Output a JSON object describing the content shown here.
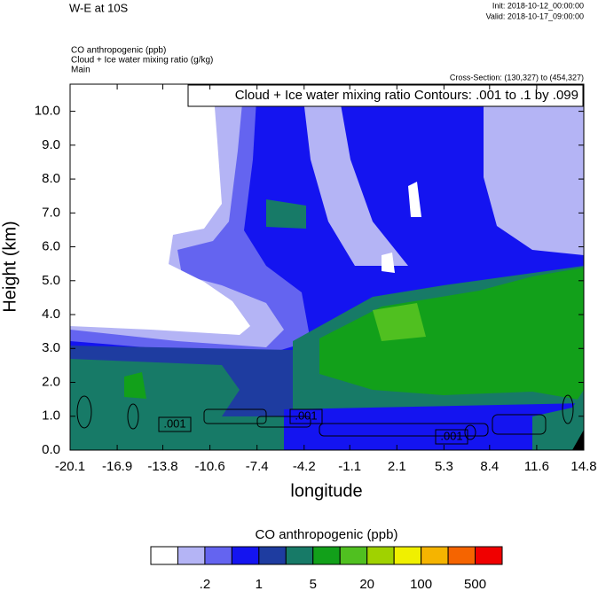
{
  "chart_data": {
    "type": "contour",
    "title": "W-E at 10S",
    "init": "Init: 2018-10-12_00:00:00",
    "valid": "Valid: 2018-10-17_09:00:00",
    "field_labels": [
      "CO anthropogenic   (ppb)",
      "Cloud + Ice water mixing ratio   (g/kg)",
      "Main"
    ],
    "cross_section": "Cross-Section: (130,327) to (454,327)",
    "contour_info": "Cloud + Ice water mixing ratio Contours: .001 to .1 by .099",
    "xlabel": "longitude",
    "ylabel": "Height (km)",
    "xlim": [
      -20.1,
      14.8
    ],
    "ylim": [
      0,
      10.8
    ],
    "xticks": [
      -20.1,
      -16.9,
      -13.8,
      -10.6,
      -7.4,
      -4.2,
      -1.1,
      2.1,
      5.3,
      8.4,
      11.6,
      14.8
    ],
    "yticks": [
      {
        "value": 0,
        "label": "0.0"
      },
      {
        "value": 1,
        "label": "1.0"
      },
      {
        "value": 2,
        "label": "2.0"
      },
      {
        "value": 3,
        "label": "3.0"
      },
      {
        "value": 4,
        "label": "4.0"
      },
      {
        "value": 5,
        "label": "5.0"
      },
      {
        "value": 6,
        "label": "6.0"
      },
      {
        "value": 7,
        "label": "7.0"
      },
      {
        "value": 8,
        "label": "8.0"
      },
      {
        "value": 9,
        "label": "9.0"
      },
      {
        "value": 10,
        "label": "10.0"
      }
    ],
    "contour_labels": [
      ".001",
      ".001",
      ".001"
    ],
    "colorbar": {
      "title": "CO anthropogenic  (ppb)",
      "colors": [
        "#ffffff",
        "#b4b4f5",
        "#6464f0",
        "#1414f0",
        "#1e3ca0",
        "#177a67",
        "#12a01a",
        "#50c020",
        "#a0d200",
        "#f0f000",
        "#f5b400",
        "#f56400",
        "#f00000"
      ],
      "ticks": [
        {
          "value": 0.2,
          "label": ".2"
        },
        1,
        5,
        20,
        100,
        500
      ]
    }
  }
}
